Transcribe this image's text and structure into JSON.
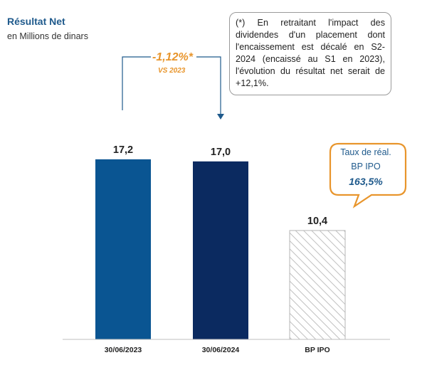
{
  "header": {
    "title": "Résultat Net",
    "subtitle": "en Millions de dinars"
  },
  "note": "(*) En retraitant l'impact des dividendes d'un placement dont l'encaissement est décalé en S2-2024 (encaissé au S1 en 2023), l'évolution du résultat net serait de +12,1%.",
  "evolution": {
    "value": "-1,12%*",
    "reference": "VS 2023"
  },
  "callout": {
    "label_line1": "Taux de réal.",
    "label_line2": "BP IPO",
    "value": "163,5%"
  },
  "colors": {
    "bar_2023": "#0a5592",
    "bar_2024": "#0b2a60",
    "bp_hatch": "#c0c0c0",
    "accent": "#e8952c",
    "title": "#1f5a8c",
    "connector": "#1f5a8c"
  },
  "chart_data": {
    "type": "bar",
    "title": "Résultat Net",
    "subtitle": "en Millions de dinars",
    "categories": [
      "30/06/2023",
      "30/06/2024",
      "BP IPO"
    ],
    "values": [
      17.2,
      17.0,
      10.4
    ],
    "value_labels": [
      "17,2",
      "17,0",
      "10,4"
    ],
    "bar_styles": [
      "solid",
      "solid",
      "hatched"
    ],
    "ylim": [
      0,
      21
    ],
    "grid": false,
    "legend": "none",
    "xlabel": "",
    "ylabel": ""
  }
}
